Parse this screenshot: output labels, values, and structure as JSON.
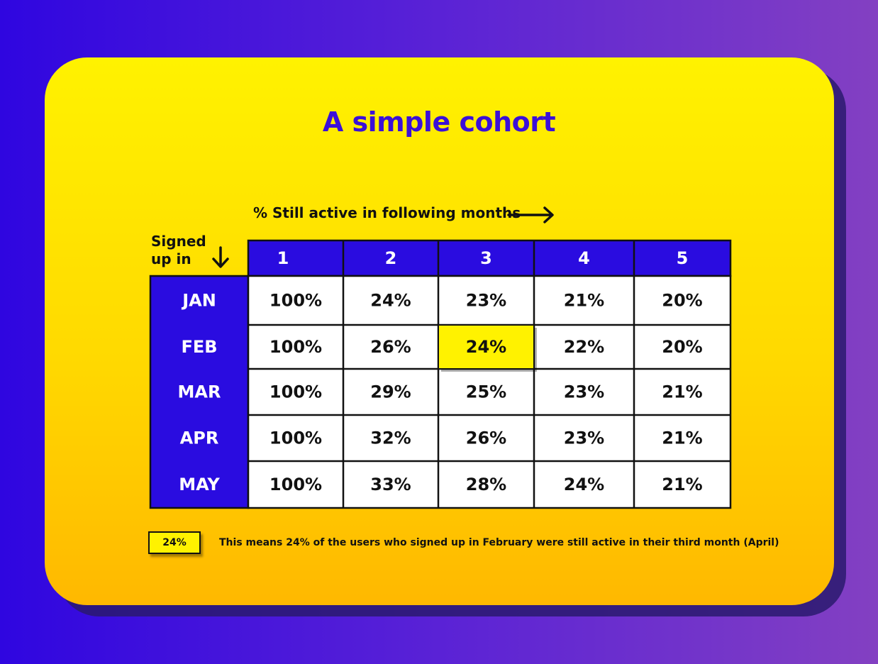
{
  "chart_data": {
    "type": "table",
    "title": "A simple cohort",
    "x_caption": "% Still active in following months",
    "y_caption": "Signed up in",
    "columns": [
      "1",
      "2",
      "3",
      "4",
      "5"
    ],
    "rows": [
      {
        "label": "JAN",
        "values": [
          "100%",
          "24%",
          "23%",
          "21%",
          "20%"
        ]
      },
      {
        "label": "FEB",
        "values": [
          "100%",
          "26%",
          "24%",
          "22%",
          "20%"
        ]
      },
      {
        "label": "MAR",
        "values": [
          "100%",
          "29%",
          "25%",
          "23%",
          "21%"
        ]
      },
      {
        "label": "APR",
        "values": [
          "100%",
          "32%",
          "26%",
          "23%",
          "21%"
        ]
      },
      {
        "label": "MAY",
        "values": [
          "100%",
          "33%",
          "28%",
          "24%",
          "21%"
        ]
      }
    ],
    "highlight": {
      "row": 1,
      "col": 2
    },
    "legend_value": "24%",
    "legend_text": "This means 24% of the users who signed up in February were still active in their third month (April)"
  },
  "colors": {
    "header_fill": "#2a0ce0",
    "highlight_fill": "#fff200",
    "cell_fill": "#ffffff",
    "title": "#3b10d8"
  },
  "icons": {
    "x_arrow": "arrow-right-icon",
    "y_arrow": "arrow-down-icon"
  }
}
